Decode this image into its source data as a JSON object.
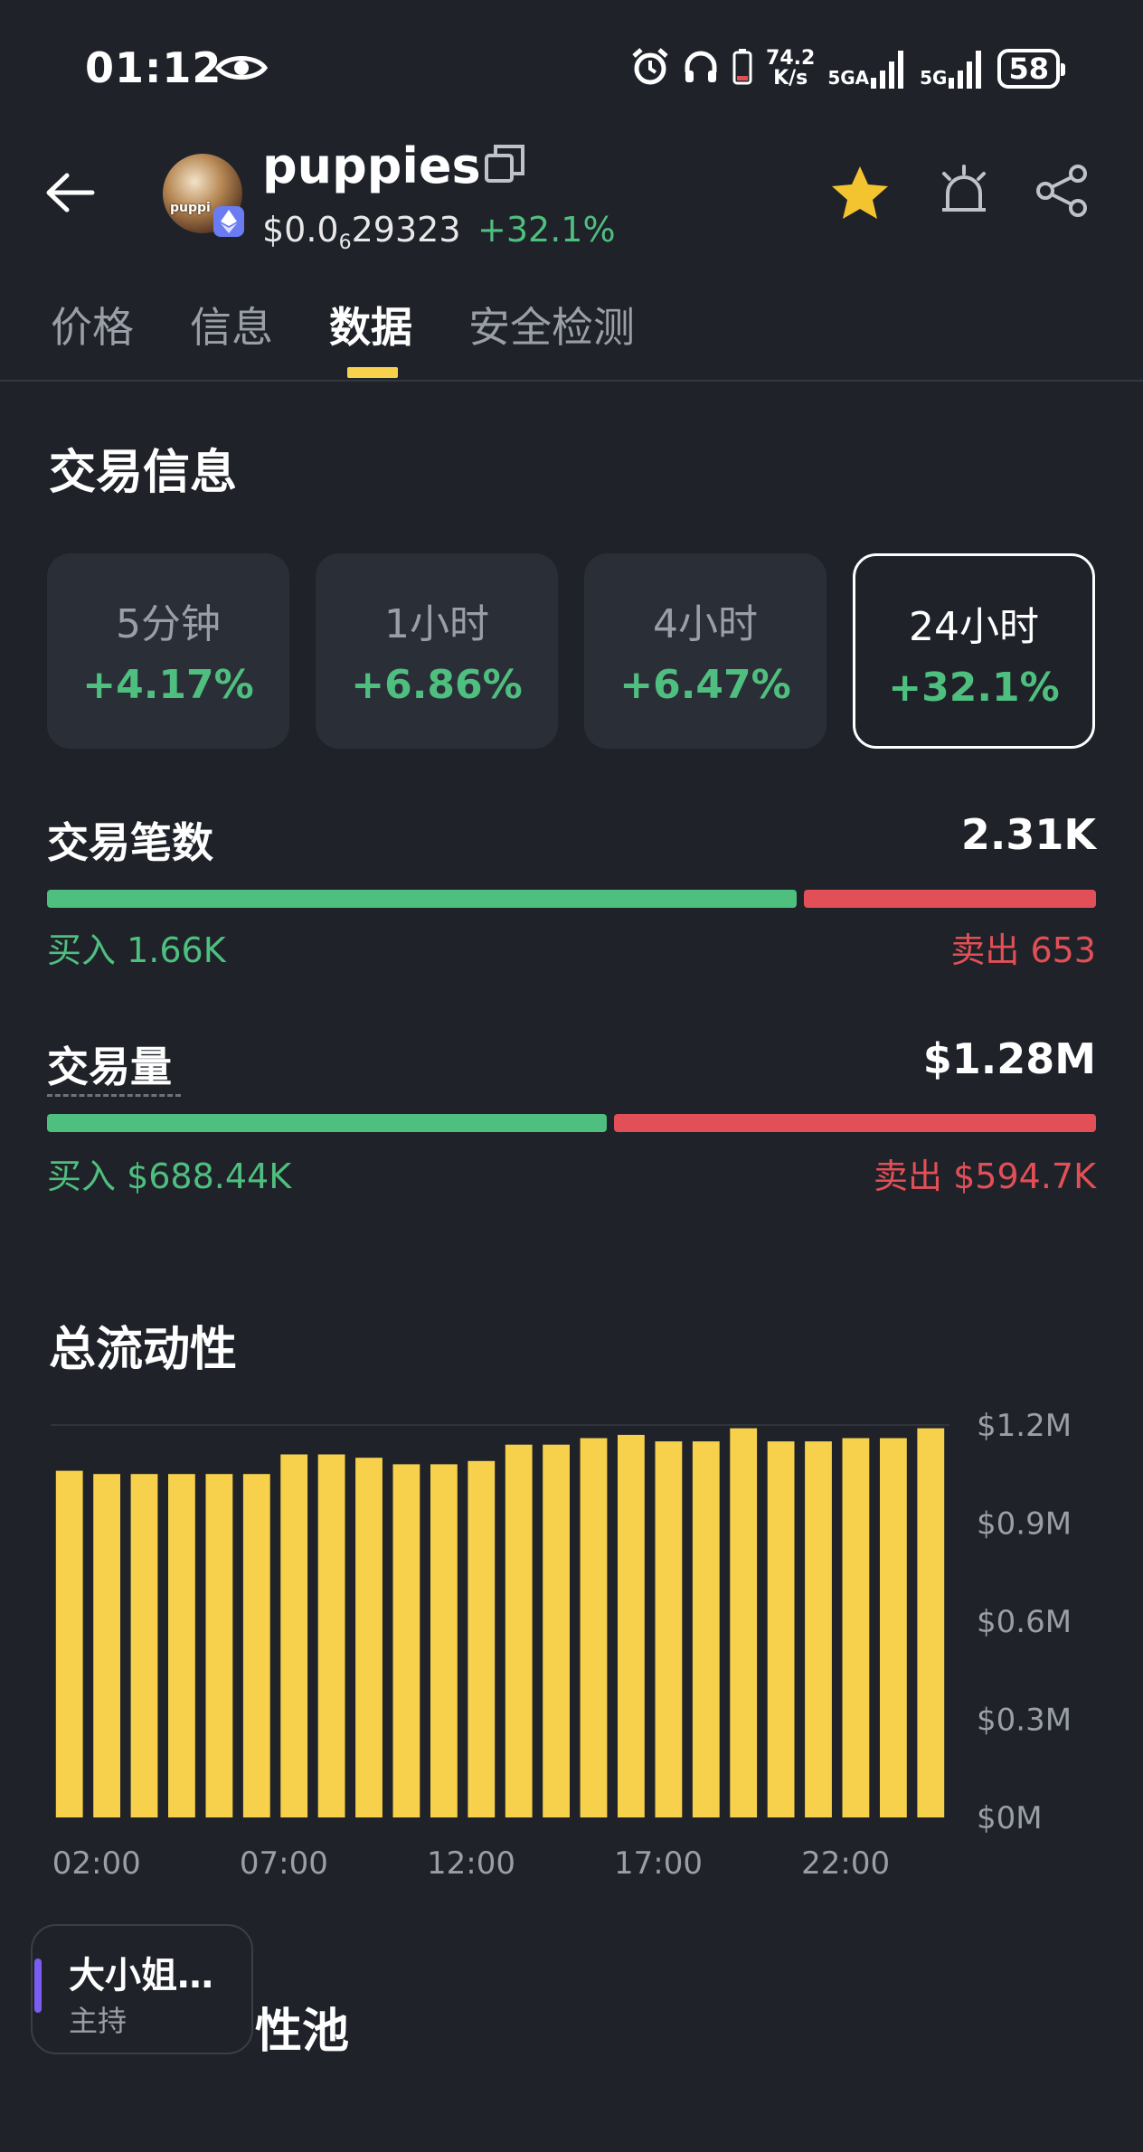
{
  "status_bar": {
    "time": "01:12",
    "net_speed_value": "74.2",
    "net_speed_unit": "K/s",
    "signal1_label": "5GA",
    "signal2_label": "5G",
    "battery": "58"
  },
  "header": {
    "token_name": "puppies",
    "avatar_text": "puppi",
    "price_prefix": "$0.0",
    "price_zero_count": "6",
    "price_digits": "29323",
    "change": "+32.1%"
  },
  "tabs": [
    {
      "label": "价格"
    },
    {
      "label": "信息"
    },
    {
      "label": "数据"
    },
    {
      "label": "安全检测"
    }
  ],
  "trade_info": {
    "title": "交易信息",
    "periods": [
      {
        "label": "5分钟",
        "value": "+4.17%"
      },
      {
        "label": "1小时",
        "value": "+6.86%"
      },
      {
        "label": "4小时",
        "value": "+6.47%"
      },
      {
        "label": "24小时",
        "value": "+32.1%"
      }
    ],
    "tx_count": {
      "label": "交易笔数",
      "total": "2.31K",
      "buy_text": "买入 1.66K",
      "sell_text": "卖出 653",
      "buy_fraction": 0.718
    },
    "volume": {
      "label": "交易量",
      "total": "$1.28M",
      "buy_text": "买入 $688.44K",
      "sell_text": "卖出 $594.7K",
      "buy_fraction": 0.537
    }
  },
  "liquidity": {
    "title": "总流动性"
  },
  "chart_data": {
    "type": "bar",
    "color": "#f7d14c",
    "x_tick_labels": [
      "02:00",
      "07:00",
      "12:00",
      "17:00",
      "22:00"
    ],
    "x_tick_bar_index": [
      0,
      5,
      10,
      15,
      20
    ],
    "y_tick_labels": [
      "$1.2M",
      "$0.9M",
      "$0.6M",
      "$0.3M",
      "$0M"
    ],
    "y_tick_values": [
      1.2,
      0.9,
      0.6,
      0.3,
      0
    ],
    "ylim": [
      0,
      1.2
    ],
    "values": [
      1.06,
      1.05,
      1.05,
      1.05,
      1.05,
      1.05,
      1.11,
      1.11,
      1.1,
      1.08,
      1.08,
      1.09,
      1.14,
      1.14,
      1.16,
      1.17,
      1.15,
      1.15,
      1.19,
      1.15,
      1.15,
      1.16,
      1.16,
      1.19
    ]
  },
  "host_card": {
    "name": "大小姐…",
    "role": "主持"
  },
  "pool_section": {
    "title_visible": "性池"
  }
}
